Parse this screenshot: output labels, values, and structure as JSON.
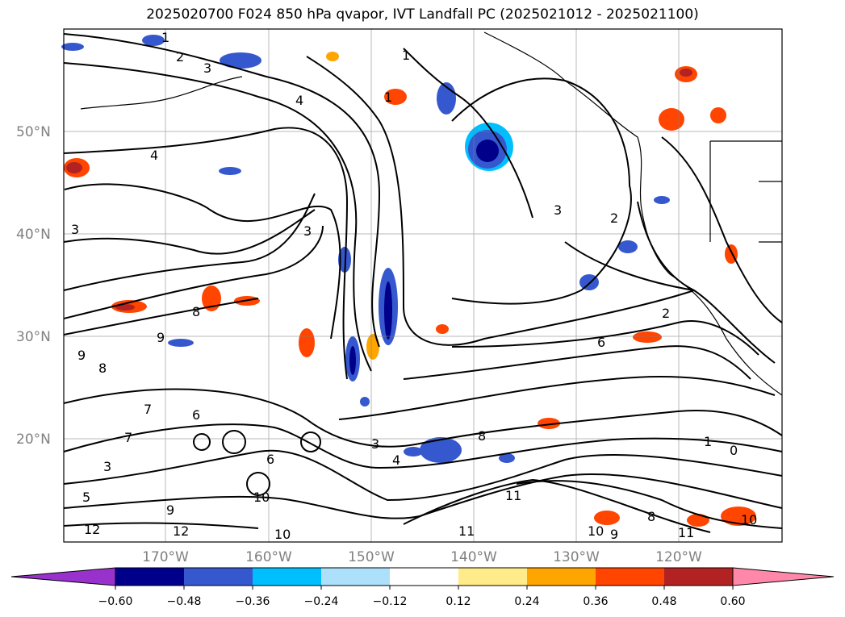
{
  "title": "2025020700 F024 850 hPa qvapor, IVT Landfall PC (2025021012 - 2025021100)",
  "map": {
    "lat_labels": [
      "50°N",
      "40°N",
      "30°N",
      "20°N"
    ],
    "lon_labels": [
      "170°W",
      "160°W",
      "150°W",
      "140°W",
      "130°W",
      "120°W"
    ],
    "contour_labels": [
      "1",
      "2",
      "3",
      "4",
      "1",
      "1",
      "4",
      "3",
      "3",
      "2",
      "3",
      "8",
      "9",
      "9",
      "8",
      "7",
      "6",
      "6",
      "2",
      "1",
      "0",
      "3",
      "4",
      "8",
      "7",
      "5",
      "3",
      "6",
      "9",
      "10",
      "12",
      "12",
      "10",
      "11",
      "11",
      "10",
      "9",
      "8",
      "10",
      "11"
    ]
  },
  "colorbar": {
    "ticks": [
      "−0.60",
      "−0.48",
      "−0.36",
      "−0.24",
      "−0.12",
      "0.12",
      "0.24",
      "0.36",
      "0.48",
      "0.60"
    ],
    "colors": [
      "#9932cc",
      "#00008b",
      "#3658cf",
      "#00bfff",
      "#ade1fb",
      "#ffffff",
      "#ffeb8a",
      "#ffa500",
      "#ff4500",
      "#b22222",
      "#ff88aa"
    ]
  }
}
